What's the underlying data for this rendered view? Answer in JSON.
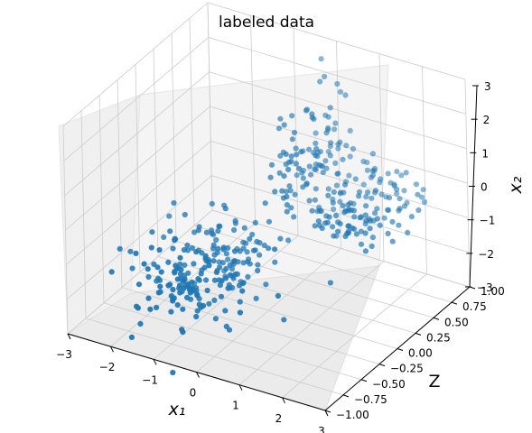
{
  "chart_data": {
    "type": "scatter",
    "projection": "3d",
    "title": "labeled data",
    "xlabel": "x₁",
    "ylabel": "Z",
    "zlabel": "x₂",
    "xlim": [
      -3,
      3
    ],
    "ylim": [
      -1.0,
      1.0
    ],
    "zlim": [
      -3,
      3
    ],
    "x_ticks": [
      "−3",
      "−2",
      "−1",
      "0",
      "1",
      "2",
      "3"
    ],
    "y_ticks": [
      "−1.00",
      "−0.75",
      "−0.50",
      "−0.25",
      "0.00",
      "0.25",
      "0.50",
      "0.75",
      "1.00"
    ],
    "z_ticks": [
      "−3",
      "−2",
      "−1",
      "0",
      "1",
      "2",
      "3"
    ],
    "grid": true,
    "marker_color": "#1f77b4",
    "pane_color": "#f2f2f2",
    "grid_color": "#cccccc",
    "clusters": [
      {
        "x_mean": -0.6,
        "z_mean": -1.2,
        "x_sd": 0.65,
        "z_sd": 0.5,
        "n": 220,
        "depth_range": [
          -1.0,
          0.0
        ]
      },
      {
        "x_mean": 0.3,
        "z_mean": 0.6,
        "x_sd": 0.25,
        "z_sd": 0.9,
        "n": 110,
        "depth_range": [
          0.0,
          0.9
        ]
      },
      {
        "x_mean": 1.6,
        "z_mean": -0.2,
        "x_sd": 0.5,
        "z_sd": 0.25,
        "n": 120,
        "depth_range": [
          0.0,
          0.9
        ]
      }
    ]
  }
}
